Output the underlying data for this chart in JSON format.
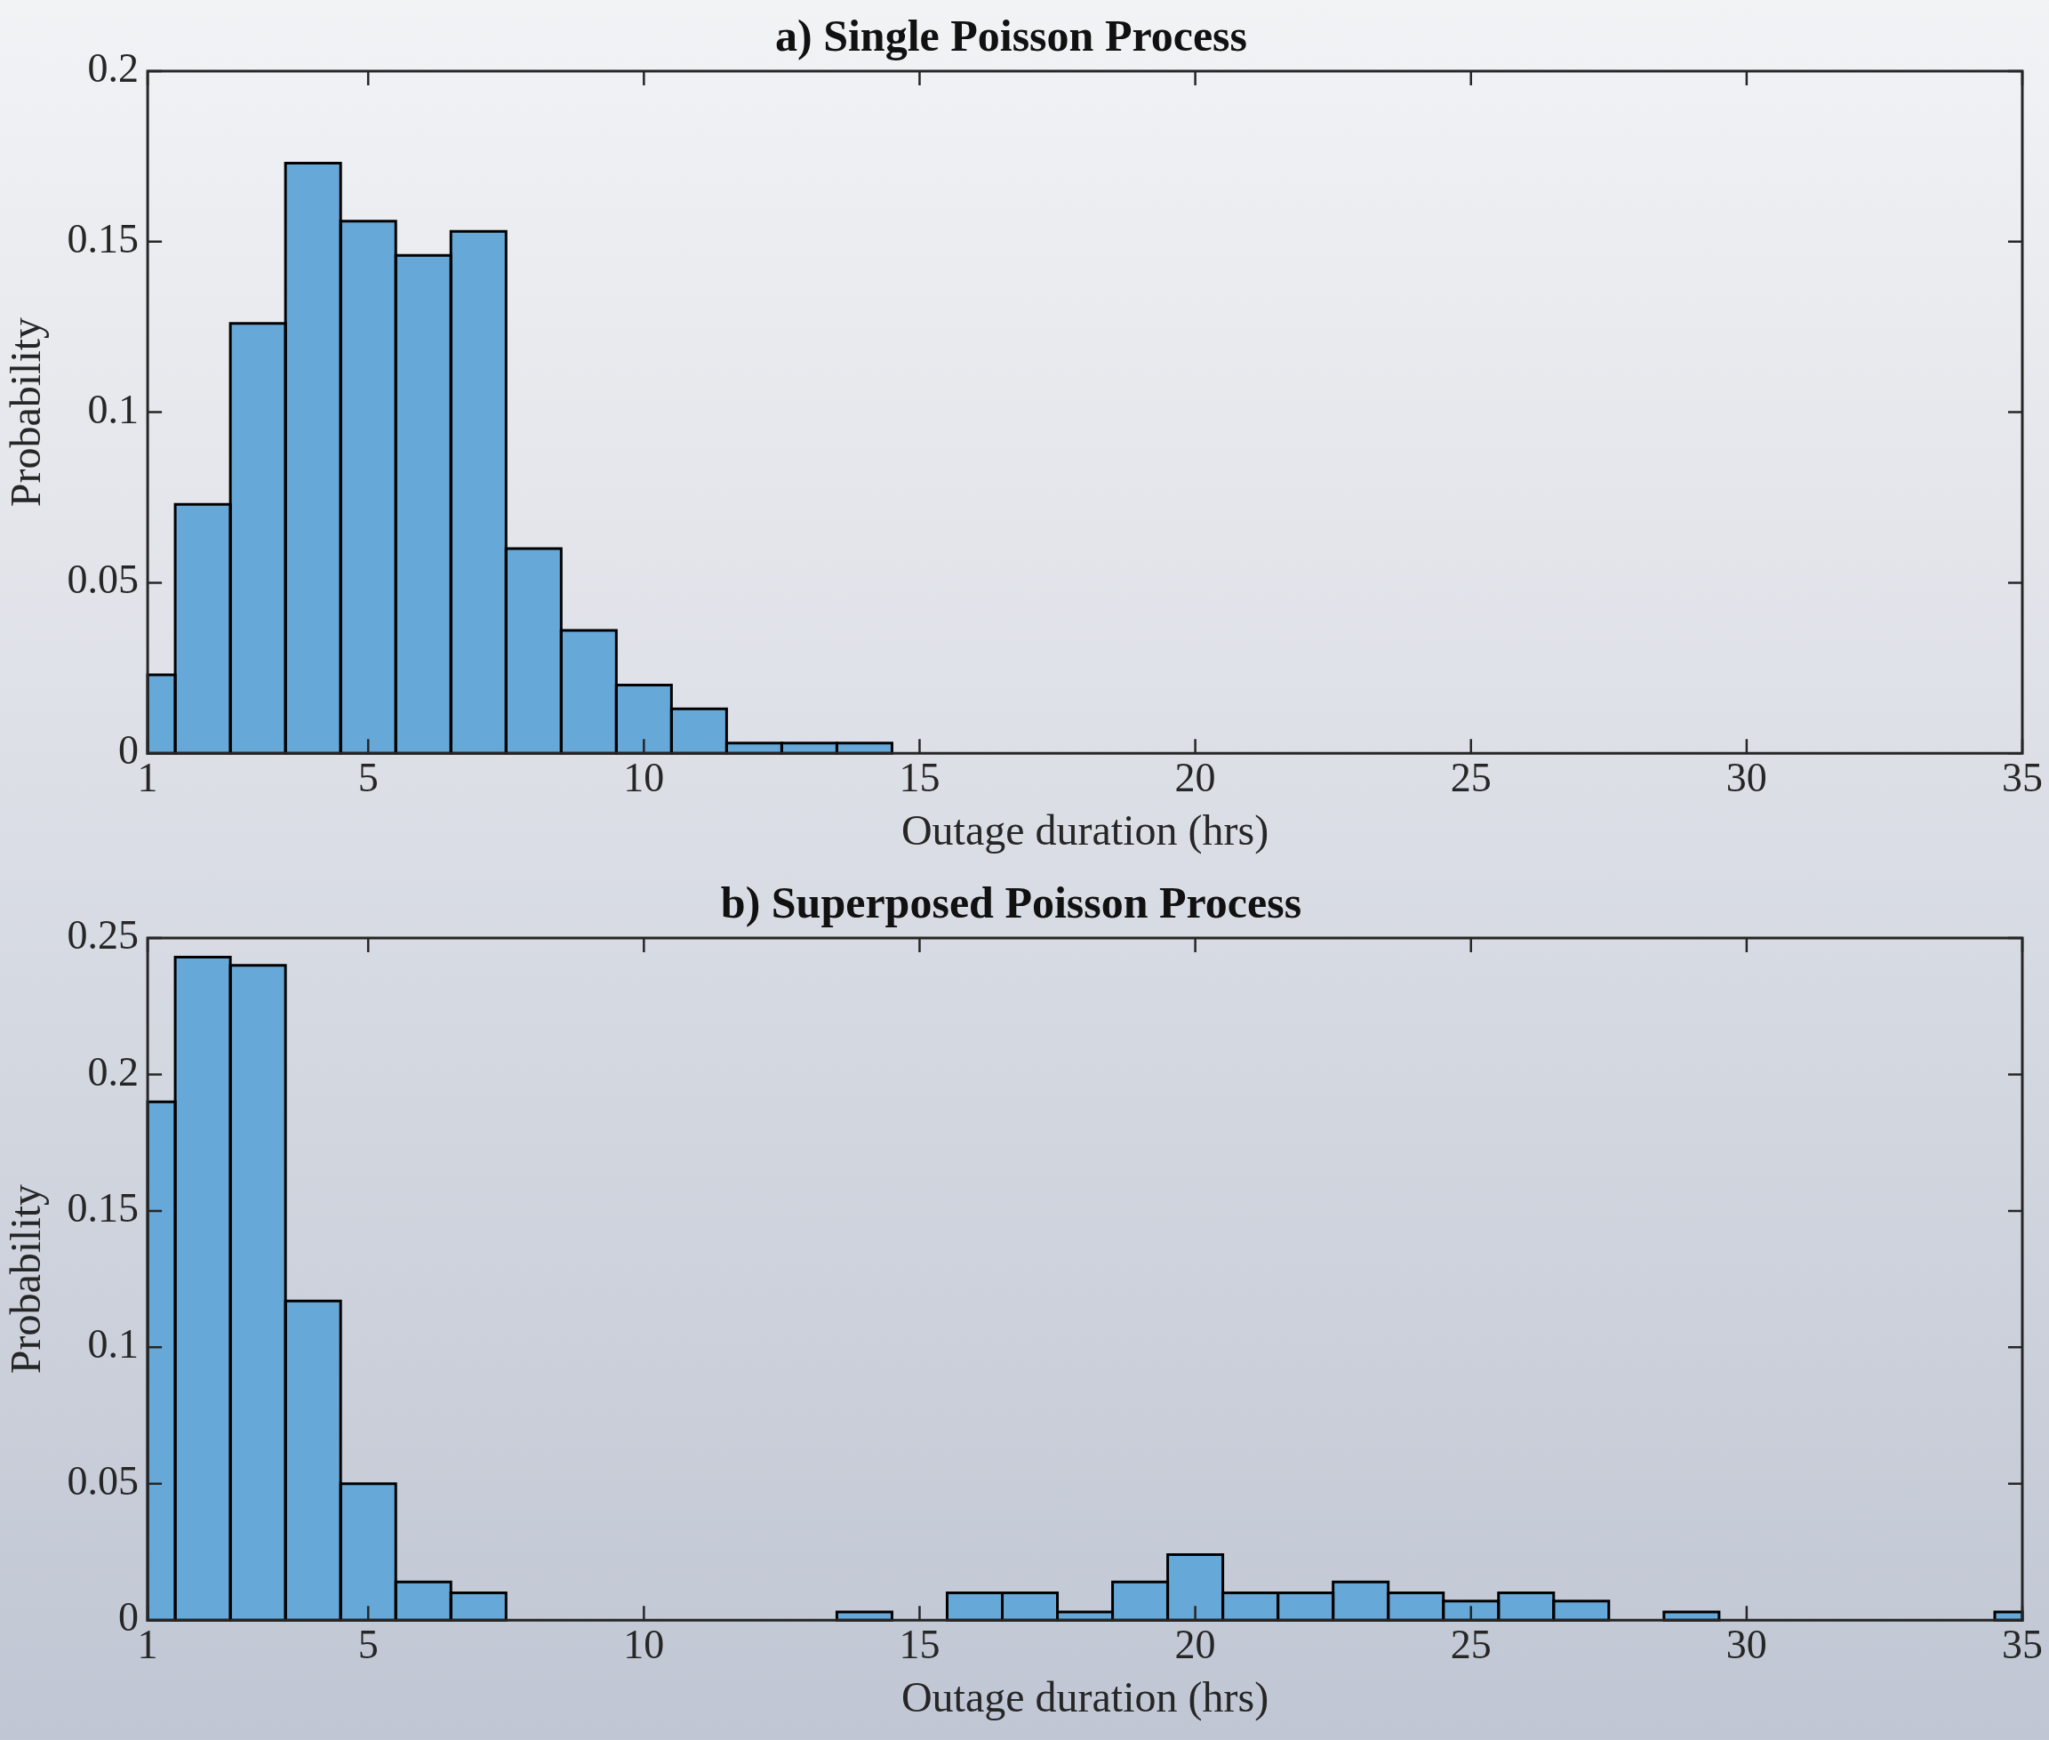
{
  "chart_data": [
    {
      "type": "histogram",
      "title": "a) Single Poisson Process",
      "xlabel": "Outage duration (hrs)",
      "ylabel": "Probability",
      "color": "#66a9d8",
      "bins": [
        1,
        1.5,
        2.5,
        3.5,
        4.5,
        5.5,
        6.5,
        7.5,
        8.5,
        9.5,
        10.5,
        11.5,
        12.5,
        13.5,
        14.5
      ],
      "values": [
        0.023,
        0.073,
        0.126,
        0.173,
        0.156,
        0.146,
        0.153,
        0.06,
        0.036,
        0.02,
        0.013,
        0.003,
        0.003,
        0.003
      ],
      "xlim": [
        1,
        35
      ],
      "xticks": [
        1,
        5,
        10,
        15,
        20,
        25,
        30,
        35
      ],
      "ylim": [
        0,
        0.2
      ],
      "yticks": [
        0,
        0.05,
        0.1,
        0.15,
        0.2
      ]
    },
    {
      "type": "histogram",
      "title": "b) Superposed Poisson Process",
      "xlabel": "Outage duration (hrs)",
      "ylabel": "Probability",
      "color": "#66a9d8",
      "bins": [
        1,
        1.5,
        2.5,
        3.5,
        4.5,
        5.5,
        6.5,
        7.5,
        13.5,
        14.5,
        15.5,
        16.5,
        17.5,
        18.5,
        19.5,
        20.5,
        21.5,
        22.5,
        23.5,
        24.5,
        25.5,
        26.5,
        27.5,
        28.5,
        29.5,
        34.5,
        35
      ],
      "values": [
        0.19,
        0.243,
        0.24,
        0.117,
        0.05,
        0.014,
        0.01,
        0,
        0.003,
        0,
        0.01,
        0.01,
        0.003,
        0.014,
        0.024,
        0.01,
        0.01,
        0.014,
        0.01,
        0.007,
        0.01,
        0.007,
        0,
        0.003,
        0,
        0.003
      ],
      "xlim": [
        1,
        35
      ],
      "xticks": [
        1,
        5,
        10,
        15,
        20,
        25,
        30,
        35
      ],
      "ylim": [
        0,
        0.25
      ],
      "yticks": [
        0,
        0.05,
        0.1,
        0.15,
        0.2,
        0.25
      ]
    }
  ]
}
